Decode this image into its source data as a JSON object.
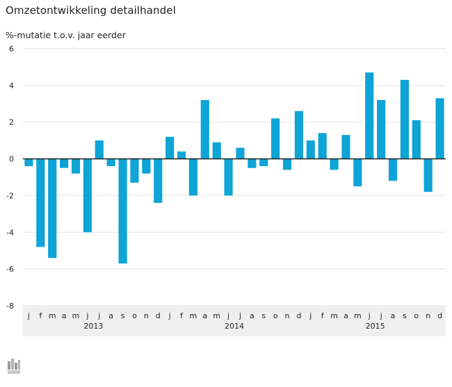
{
  "header": {
    "title": "Omzetontwikkeling detailhandel",
    "subtitle": "%-mutatie t.o.v. jaar eerder"
  },
  "logo": {
    "icon": "cbs-logo-icon"
  },
  "colors": {
    "bar": "#0ea4d6",
    "axis_band": "#efefef",
    "grid": "#e3e3e3",
    "zero_line": "#222222"
  },
  "chart_data": {
    "type": "bar",
    "title": "Omzetontwikkeling detailhandel",
    "ylabel": "%-mutatie t.o.v. jaar eerder",
    "xlabel": "",
    "ylim": [
      -8,
      6
    ],
    "yticks": [
      -8,
      -6,
      -4,
      -2,
      0,
      2,
      4,
      6
    ],
    "grid": true,
    "categories": [
      "j",
      "f",
      "m",
      "a",
      "m",
      "j",
      "j",
      "a",
      "s",
      "o",
      "n",
      "d",
      "j",
      "f",
      "m",
      "a",
      "m",
      "j",
      "j",
      "a",
      "s",
      "o",
      "n",
      "d",
      "j",
      "f",
      "m",
      "a",
      "m",
      "j",
      "j",
      "a",
      "s",
      "o",
      "n",
      "d"
    ],
    "years": [
      "2013",
      "2014",
      "2015"
    ],
    "values": [
      -0.4,
      -4.8,
      -5.4,
      -0.5,
      -0.8,
      -4.0,
      1.0,
      -0.4,
      -5.7,
      -1.3,
      -0.8,
      -2.4,
      1.2,
      0.4,
      -2.0,
      3.2,
      0.9,
      -2.0,
      0.6,
      -0.5,
      -0.4,
      2.2,
      -0.6,
      2.6,
      1.0,
      1.4,
      -0.6,
      1.3,
      -1.5,
      4.7,
      3.2,
      -1.2,
      4.3,
      2.1,
      -1.8,
      3.3
    ]
  }
}
